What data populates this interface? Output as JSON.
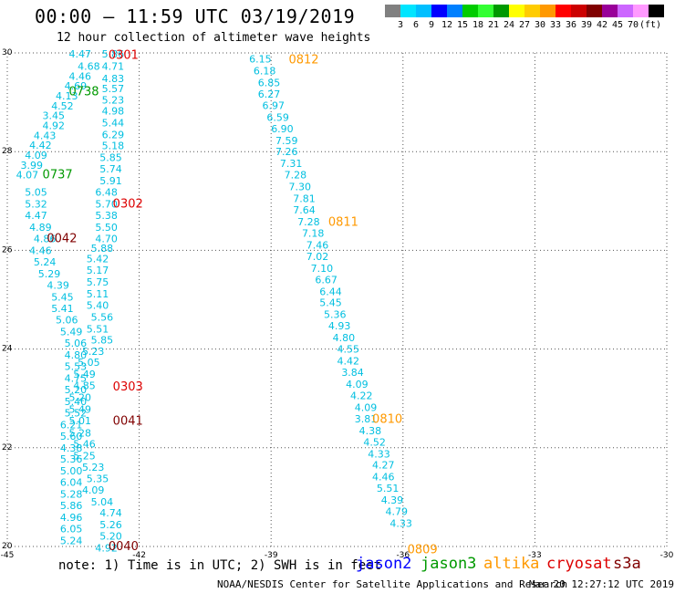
{
  "header": {
    "title": "00:00 – 11:59 UTC 03/19/2019",
    "subtitle": "12 hour collection of altimeter wave heights"
  },
  "colorbar": {
    "colors": [
      "#808080",
      "#00e5ff",
      "#00bfff",
      "#0000ff",
      "#0080ff",
      "#00cc00",
      "#33ff33",
      "#009900",
      "#ffff00",
      "#ffcc00",
      "#ff9900",
      "#ff0000",
      "#cc0000",
      "#800000",
      "#990099",
      "#cc66ff",
      "#ff99ff",
      "#000000"
    ],
    "labels": [
      "3",
      "6",
      "9",
      "12",
      "15",
      "18",
      "21",
      "24",
      "27",
      "30",
      "33",
      "36",
      "39",
      "42",
      "45",
      "70",
      "(ft)"
    ]
  },
  "chart_data": {
    "type": "scatter",
    "xlim": [
      -45,
      -30
    ],
    "ylim": [
      20,
      30
    ],
    "xticks": [
      "-45",
      "-42",
      "-39",
      "-36",
      "-33",
      "-30"
    ],
    "yticks": [
      "30",
      "28",
      "26",
      "24",
      "22",
      "20"
    ],
    "grid": true,
    "legend_position": "bottom",
    "colors": {
      "cyan": "#00bfe0",
      "jason2": "#0000ff",
      "jason3": "#009900",
      "altika": "#ff9900",
      "cryosat": "#dd0000",
      "s3a": "#800000"
    },
    "points": [
      {
        "x": -43.6,
        "y": 29.98,
        "v": "4.47"
      },
      {
        "x": -43.4,
        "y": 29.73,
        "v": "4.68"
      },
      {
        "x": -43.6,
        "y": 29.53,
        "v": "4.46"
      },
      {
        "x": -43.7,
        "y": 29.33,
        "v": "4.69"
      },
      {
        "x": -43.9,
        "y": 29.13,
        "v": "4.13"
      },
      {
        "x": -44.0,
        "y": 28.93,
        "v": "4.52"
      },
      {
        "x": -44.2,
        "y": 28.73,
        "v": "3.45"
      },
      {
        "x": -44.2,
        "y": 28.53,
        "v": "4.92"
      },
      {
        "x": -44.4,
        "y": 28.33,
        "v": "4.43"
      },
      {
        "x": -44.5,
        "y": 28.13,
        "v": "4.42"
      },
      {
        "x": -44.6,
        "y": 27.93,
        "v": "4.09"
      },
      {
        "x": -44.7,
        "y": 27.73,
        "v": "3.99"
      },
      {
        "x": -44.8,
        "y": 27.53,
        "v": "4.07"
      },
      {
        "x": -42.85,
        "y": 29.98,
        "v": "5.86"
      },
      {
        "x": -42.85,
        "y": 29.73,
        "v": "4.71"
      },
      {
        "x": -42.85,
        "y": 29.48,
        "v": "4.83"
      },
      {
        "x": -42.85,
        "y": 29.28,
        "v": "5.57"
      },
      {
        "x": -42.85,
        "y": 29.05,
        "v": "5.23"
      },
      {
        "x": -42.85,
        "y": 28.83,
        "v": "4.98"
      },
      {
        "x": -42.85,
        "y": 28.59,
        "v": "5.44"
      },
      {
        "x": -42.85,
        "y": 28.35,
        "v": "6.29"
      },
      {
        "x": -42.85,
        "y": 28.12,
        "v": "5.18"
      },
      {
        "x": -42.9,
        "y": 27.88,
        "v": "5.85"
      },
      {
        "x": -42.9,
        "y": 27.65,
        "v": "5.74"
      },
      {
        "x": -42.9,
        "y": 27.41,
        "v": "5.91"
      },
      {
        "x": -43.0,
        "y": 27.18,
        "v": "6.48"
      },
      {
        "x": -43.0,
        "y": 26.94,
        "v": "5.70"
      },
      {
        "x": -43.0,
        "y": 26.71,
        "v": "5.38"
      },
      {
        "x": -43.0,
        "y": 26.47,
        "v": "5.50"
      },
      {
        "x": -43.0,
        "y": 26.24,
        "v": "4.70"
      },
      {
        "x": -43.1,
        "y": 26.04,
        "v": "5.88"
      },
      {
        "x": -43.2,
        "y": 25.83,
        "v": "5.42"
      },
      {
        "x": -43.2,
        "y": 25.6,
        "v": "5.17"
      },
      {
        "x": -43.2,
        "y": 25.36,
        "v": "5.75"
      },
      {
        "x": -43.2,
        "y": 25.12,
        "v": "5.11"
      },
      {
        "x": -43.2,
        "y": 24.89,
        "v": "5.40"
      },
      {
        "x": -43.1,
        "y": 24.65,
        "v": "5.56"
      },
      {
        "x": -43.2,
        "y": 24.41,
        "v": "5.51"
      },
      {
        "x": -43.1,
        "y": 24.19,
        "v": "5.85"
      },
      {
        "x": -43.3,
        "y": 23.96,
        "v": "5.23"
      },
      {
        "x": -43.4,
        "y": 23.73,
        "v": "5.05"
      },
      {
        "x": -43.5,
        "y": 23.49,
        "v": "5.49"
      },
      {
        "x": -43.5,
        "y": 23.26,
        "v": "4.85"
      },
      {
        "x": -43.6,
        "y": 23.02,
        "v": "5.20"
      },
      {
        "x": -43.6,
        "y": 22.78,
        "v": "5.49"
      },
      {
        "x": -43.6,
        "y": 22.55,
        "v": "5.01"
      },
      {
        "x": -43.6,
        "y": 22.3,
        "v": "5.28"
      },
      {
        "x": -43.5,
        "y": 22.08,
        "v": "5.46"
      },
      {
        "x": -43.5,
        "y": 21.84,
        "v": "5.25"
      },
      {
        "x": -43.3,
        "y": 21.61,
        "v": "5.23"
      },
      {
        "x": -43.2,
        "y": 21.38,
        "v": "5.35"
      },
      {
        "x": -43.3,
        "y": 21.15,
        "v": "4.09"
      },
      {
        "x": -43.1,
        "y": 20.91,
        "v": "5.04"
      },
      {
        "x": -42.9,
        "y": 20.68,
        "v": "4.74"
      },
      {
        "x": -42.9,
        "y": 20.44,
        "v": "5.26"
      },
      {
        "x": -42.9,
        "y": 20.21,
        "v": "5.20"
      },
      {
        "x": -43.0,
        "y": 19.97,
        "v": "4.92"
      },
      {
        "x": -44.6,
        "y": 27.18,
        "v": "5.05"
      },
      {
        "x": -44.6,
        "y": 26.94,
        "v": "5.32"
      },
      {
        "x": -44.6,
        "y": 26.71,
        "v": "4.47"
      },
      {
        "x": -44.5,
        "y": 26.47,
        "v": "4.89"
      },
      {
        "x": -44.4,
        "y": 26.24,
        "v": "4.86"
      },
      {
        "x": -44.5,
        "y": 26.0,
        "v": "4.46"
      },
      {
        "x": -44.4,
        "y": 25.77,
        "v": "5.24"
      },
      {
        "x": -44.3,
        "y": 25.53,
        "v": "5.29"
      },
      {
        "x": -44.1,
        "y": 25.3,
        "v": "4.39"
      },
      {
        "x": -44.0,
        "y": 25.06,
        "v": "5.45"
      },
      {
        "x": -44.0,
        "y": 24.82,
        "v": "5.41"
      },
      {
        "x": -43.9,
        "y": 24.59,
        "v": "5.06"
      },
      {
        "x": -43.8,
        "y": 24.35,
        "v": "5.49"
      },
      {
        "x": -43.7,
        "y": 24.12,
        "v": "5.06"
      },
      {
        "x": -43.7,
        "y": 23.88,
        "v": "4.80"
      },
      {
        "x": -43.7,
        "y": 23.65,
        "v": "5.53"
      },
      {
        "x": -43.7,
        "y": 23.41,
        "v": "4.75"
      },
      {
        "x": -43.7,
        "y": 23.18,
        "v": "5.20"
      },
      {
        "x": -43.7,
        "y": 22.94,
        "v": "5.40"
      },
      {
        "x": -43.7,
        "y": 22.71,
        "v": "5.52"
      },
      {
        "x": -43.8,
        "y": 22.47,
        "v": "6.21"
      },
      {
        "x": -43.8,
        "y": 22.24,
        "v": "5.60"
      },
      {
        "x": -43.8,
        "y": 22.0,
        "v": "4.38"
      },
      {
        "x": -43.8,
        "y": 21.77,
        "v": "5.36"
      },
      {
        "x": -43.8,
        "y": 21.53,
        "v": "5.00"
      },
      {
        "x": -43.8,
        "y": 21.3,
        "v": "6.04"
      },
      {
        "x": -43.8,
        "y": 21.06,
        "v": "5.28"
      },
      {
        "x": -43.8,
        "y": 20.83,
        "v": "5.86"
      },
      {
        "x": -43.8,
        "y": 20.59,
        "v": "4.96"
      },
      {
        "x": -43.8,
        "y": 20.36,
        "v": "6.05"
      },
      {
        "x": -43.8,
        "y": 20.12,
        "v": "5.24"
      },
      {
        "x": -39.5,
        "y": 29.88,
        "v": "6.15"
      },
      {
        "x": -39.4,
        "y": 29.64,
        "v": "6.18"
      },
      {
        "x": -39.3,
        "y": 29.4,
        "v": "6.85"
      },
      {
        "x": -39.3,
        "y": 29.17,
        "v": "6.27"
      },
      {
        "x": -39.2,
        "y": 28.94,
        "v": "6.97"
      },
      {
        "x": -39.1,
        "y": 28.7,
        "v": "6.59"
      },
      {
        "x": -39.0,
        "y": 28.47,
        "v": "6.90"
      },
      {
        "x": -38.9,
        "y": 28.23,
        "v": "7.59"
      },
      {
        "x": -38.9,
        "y": 28.0,
        "v": "7.26"
      },
      {
        "x": -38.8,
        "y": 27.76,
        "v": "7.31"
      },
      {
        "x": -38.7,
        "y": 27.53,
        "v": "7.28"
      },
      {
        "x": -38.6,
        "y": 27.29,
        "v": "7.30"
      },
      {
        "x": -38.5,
        "y": 27.05,
        "v": "7.81"
      },
      {
        "x": -38.5,
        "y": 26.82,
        "v": "7.64"
      },
      {
        "x": -38.4,
        "y": 26.58,
        "v": "7.28"
      },
      {
        "x": -38.3,
        "y": 26.35,
        "v": "7.18"
      },
      {
        "x": -38.2,
        "y": 26.11,
        "v": "7.46"
      },
      {
        "x": -38.2,
        "y": 25.88,
        "v": "7.02"
      },
      {
        "x": -38.1,
        "y": 25.64,
        "v": "7.10"
      },
      {
        "x": -38.0,
        "y": 25.41,
        "v": "6.67"
      },
      {
        "x": -37.9,
        "y": 25.17,
        "v": "6.44"
      },
      {
        "x": -37.9,
        "y": 24.94,
        "v": "5.45"
      },
      {
        "x": -37.8,
        "y": 24.7,
        "v": "5.36"
      },
      {
        "x": -37.7,
        "y": 24.47,
        "v": "4.93"
      },
      {
        "x": -37.6,
        "y": 24.23,
        "v": "4.80"
      },
      {
        "x": -37.5,
        "y": 24.0,
        "v": "4.55"
      },
      {
        "x": -37.5,
        "y": 23.76,
        "v": "4.42"
      },
      {
        "x": -37.4,
        "y": 23.53,
        "v": "3.84"
      },
      {
        "x": -37.3,
        "y": 23.29,
        "v": "4.09"
      },
      {
        "x": -37.2,
        "y": 23.06,
        "v": "4.22"
      },
      {
        "x": -37.1,
        "y": 22.82,
        "v": "4.09"
      },
      {
        "x": -37.1,
        "y": 22.59,
        "v": "3.81"
      },
      {
        "x": -37.0,
        "y": 22.35,
        "v": "4.38"
      },
      {
        "x": -36.9,
        "y": 22.12,
        "v": "4.52"
      },
      {
        "x": -36.8,
        "y": 21.88,
        "v": "4.33"
      },
      {
        "x": -36.7,
        "y": 21.65,
        "v": "4.27"
      },
      {
        "x": -36.7,
        "y": 21.41,
        "v": "4.46"
      },
      {
        "x": -36.6,
        "y": 21.18,
        "v": "5.51"
      },
      {
        "x": -36.5,
        "y": 20.94,
        "v": "4.39"
      },
      {
        "x": -36.4,
        "y": 20.71,
        "v": "4.79"
      },
      {
        "x": -36.3,
        "y": 20.47,
        "v": "4.33"
      }
    ],
    "annotations": [
      {
        "x": -42.7,
        "y": 29.97,
        "text": "0301",
        "sat": "cryosat"
      },
      {
        "x": -43.6,
        "y": 29.23,
        "text": "0738",
        "sat": "jason3"
      },
      {
        "x": -44.2,
        "y": 27.55,
        "text": "0737",
        "sat": "jason3"
      },
      {
        "x": -42.6,
        "y": 26.96,
        "text": "0302",
        "sat": "cryosat"
      },
      {
        "x": -44.1,
        "y": 26.26,
        "text": "0042",
        "sat": "s3a"
      },
      {
        "x": -42.6,
        "y": 23.25,
        "text": "0303",
        "sat": "cryosat"
      },
      {
        "x": -42.6,
        "y": 22.56,
        "text": "0041",
        "sat": "s3a"
      },
      {
        "x": -42.7,
        "y": 20.02,
        "text": "0040",
        "sat": "s3a"
      },
      {
        "x": -38.6,
        "y": 29.88,
        "text": "0812",
        "sat": "altika"
      },
      {
        "x": -37.7,
        "y": 26.59,
        "text": "0811",
        "sat": "altika"
      },
      {
        "x": -36.7,
        "y": 22.6,
        "text": "0810",
        "sat": "altika"
      },
      {
        "x": -35.9,
        "y": 19.95,
        "text": "0809",
        "sat": "altika"
      }
    ]
  },
  "footer": {
    "note": "note: 1) Time is in UTC; 2) SWH is in feet",
    "legend": [
      {
        "label": "jason2",
        "color": "#0000ff"
      },
      {
        "label": "jason3",
        "color": "#009900"
      },
      {
        "label": "altika",
        "color": "#ff9900"
      },
      {
        "label": "cryosat",
        "color": "#dd0000"
      },
      {
        "label": "s3a",
        "color": "#800000"
      }
    ],
    "credit": "NOAA/NESDIS Center for Satellite Applications and Research",
    "timestamp": "Mar 20 12:27:12 UTC 2019"
  }
}
